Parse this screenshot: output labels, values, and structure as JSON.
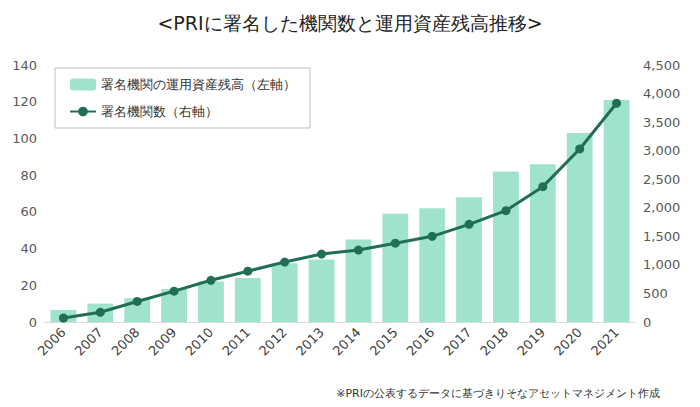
{
  "chart_data": {
    "type": "bar",
    "title": "<PRIに署名した機関数と運用資産残高推移>",
    "annotation": "※PRIの公表するデータに基づきりそなアセットマネジメント作成",
    "categories": [
      "2006",
      "2007",
      "2008",
      "2009",
      "2010",
      "2011",
      "2012",
      "2013",
      "2014",
      "2015",
      "2016",
      "2017",
      "2018",
      "2019",
      "2020",
      "2021"
    ],
    "series": [
      {
        "name": "署名機関の運用資産残高（左軸）",
        "type": "bar",
        "color": "#a0e3cd",
        "values": [
          6.5,
          10,
          13,
          18,
          22,
          24,
          32,
          34,
          45,
          59,
          62,
          68,
          82,
          86,
          103,
          121
        ]
      },
      {
        "name": "署名機関数（右軸）",
        "type": "line",
        "axis": "y2",
        "color": "#1f6e55",
        "marker": "circle",
        "values": [
          70,
          170,
          360,
          540,
          730,
          890,
          1050,
          1190,
          1260,
          1380,
          1500,
          1710,
          1950,
          2370,
          3030,
          3830
        ]
      }
    ],
    "ylim": [
      0,
      140
    ],
    "yticks": [
      0,
      20,
      40,
      60,
      80,
      100,
      120,
      140
    ],
    "y2lim": [
      0,
      4500
    ],
    "y2ticks": [
      0,
      500,
      {
        "value": 1000,
        "label": "1,000"
      },
      {
        "value": 1500,
        "label": "1,500"
      },
      {
        "value": 2000,
        "label": "2,000"
      },
      {
        "value": 2500,
        "label": "2,500"
      },
      {
        "value": 3000,
        "label": "3,000"
      },
      {
        "value": 3500,
        "label": "3,500"
      },
      {
        "value": 4000,
        "label": "4,000"
      },
      {
        "value": 4500,
        "label": "4,500"
      }
    ],
    "grid": false,
    "legend": "upper left"
  }
}
